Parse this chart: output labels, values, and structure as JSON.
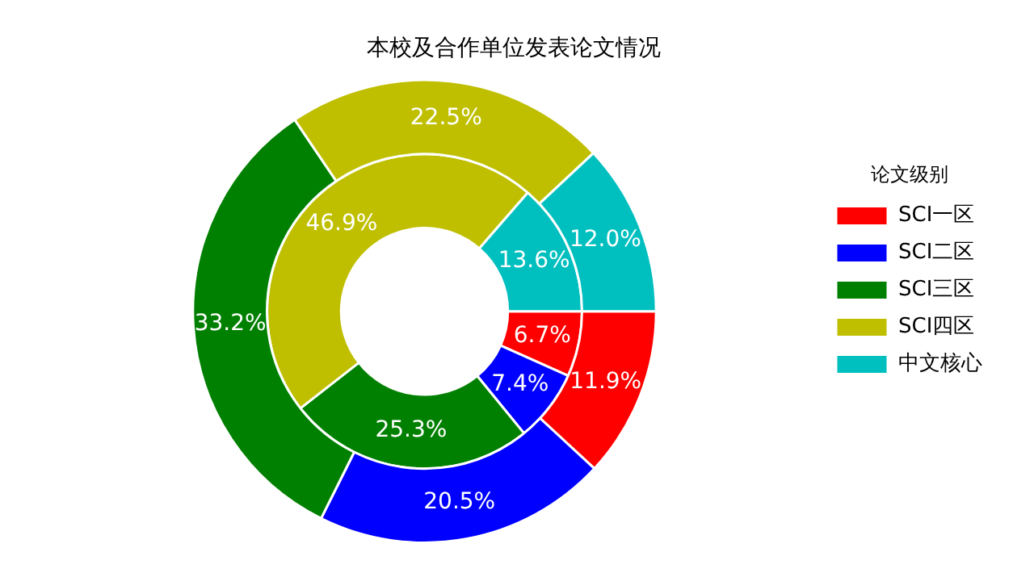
{
  "chart_data": {
    "type": "donut",
    "title": "本校及合作单位发表论文情况",
    "legend_title": "论文级别",
    "legend": "right",
    "categories": [
      "SCI一区",
      "SCI二区",
      "SCI三区",
      "SCI四区",
      "中文核心"
    ],
    "colors": [
      "#ff0000",
      "#0000ff",
      "#008000",
      "#bfbf00",
      "#00bfbf"
    ],
    "series": [
      {
        "values": [
          11.9,
          20.5,
          33.2,
          22.5,
          12.0
        ],
        "value_labels": [
          "11.9%",
          "20.5%",
          "33.2%",
          "22.5%",
          "12.0%"
        ]
      },
      {
        "values": [
          6.7,
          7.4,
          25.3,
          46.9,
          13.6
        ],
        "value_labels": [
          "6.7%",
          "7.4%",
          "25.3%",
          "46.9%",
          "13.6%"
        ]
      }
    ]
  }
}
